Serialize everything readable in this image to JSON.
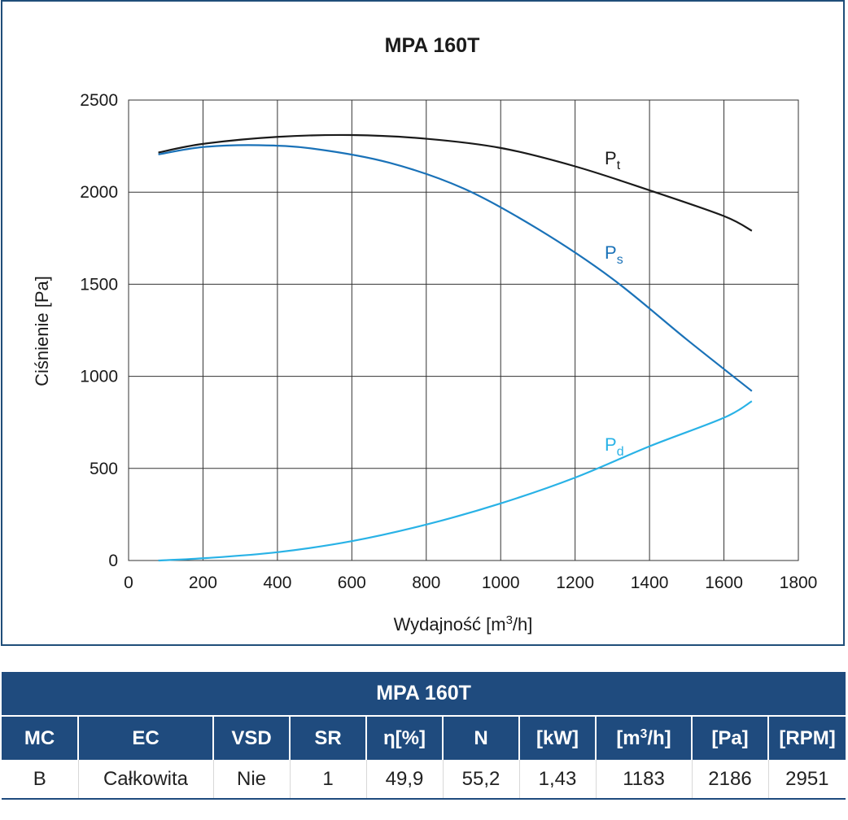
{
  "chart_data": {
    "type": "line",
    "title": "MPA 160T",
    "xlabel": "Wydajność [m",
    "xlabel_sup": "3",
    "xlabel_tail": "/h]",
    "ylabel": "Ciśnienie [Pa]",
    "xlim": [
      0,
      1800
    ],
    "ylim": [
      0,
      2500
    ],
    "x_ticks": [
      "0",
      "200",
      "400",
      "600",
      "800",
      "1000",
      "1200",
      "1400",
      "1600",
      "1800"
    ],
    "y_ticks": [
      "0",
      "500",
      "1000",
      "1500",
      "2000",
      "2500"
    ],
    "grid": true,
    "series": [
      {
        "name": "P",
        "sub": "t",
        "color": "#1a1a1a",
        "x": [
          80,
          200,
          400,
          600,
          800,
          1000,
          1200,
          1400,
          1600,
          1675
        ],
        "y": [
          2215,
          2262,
          2300,
          2310,
          2290,
          2240,
          2140,
          2010,
          1870,
          1790
        ]
      },
      {
        "name": "P",
        "sub": "s",
        "color": "#1a72b8",
        "x": [
          80,
          200,
          350,
          500,
          700,
          900,
          1100,
          1300,
          1500,
          1675
        ],
        "y": [
          2205,
          2245,
          2255,
          2235,
          2160,
          2020,
          1800,
          1530,
          1200,
          920
        ]
      },
      {
        "name": "P",
        "sub": "d",
        "color": "#29b2e6",
        "x": [
          80,
          200,
          400,
          600,
          800,
          1000,
          1200,
          1400,
          1600,
          1675
        ],
        "y": [
          0,
          12,
          45,
          105,
          195,
          310,
          450,
          620,
          775,
          865
        ]
      }
    ]
  },
  "table": {
    "title": "MPA 160T",
    "headers": [
      "MC",
      "EC",
      "VSD",
      "SR",
      "η[%]",
      "N",
      "[kW]",
      "[m",
      "[Pa]",
      "[RPM]"
    ],
    "header_m3_sup": "3",
    "header_m3_tail": "/h]",
    "values": [
      "B",
      "Całkowita",
      "Nie",
      "1",
      "49,9",
      "55,2",
      "1,43",
      "1183",
      "2186",
      "2951"
    ]
  }
}
